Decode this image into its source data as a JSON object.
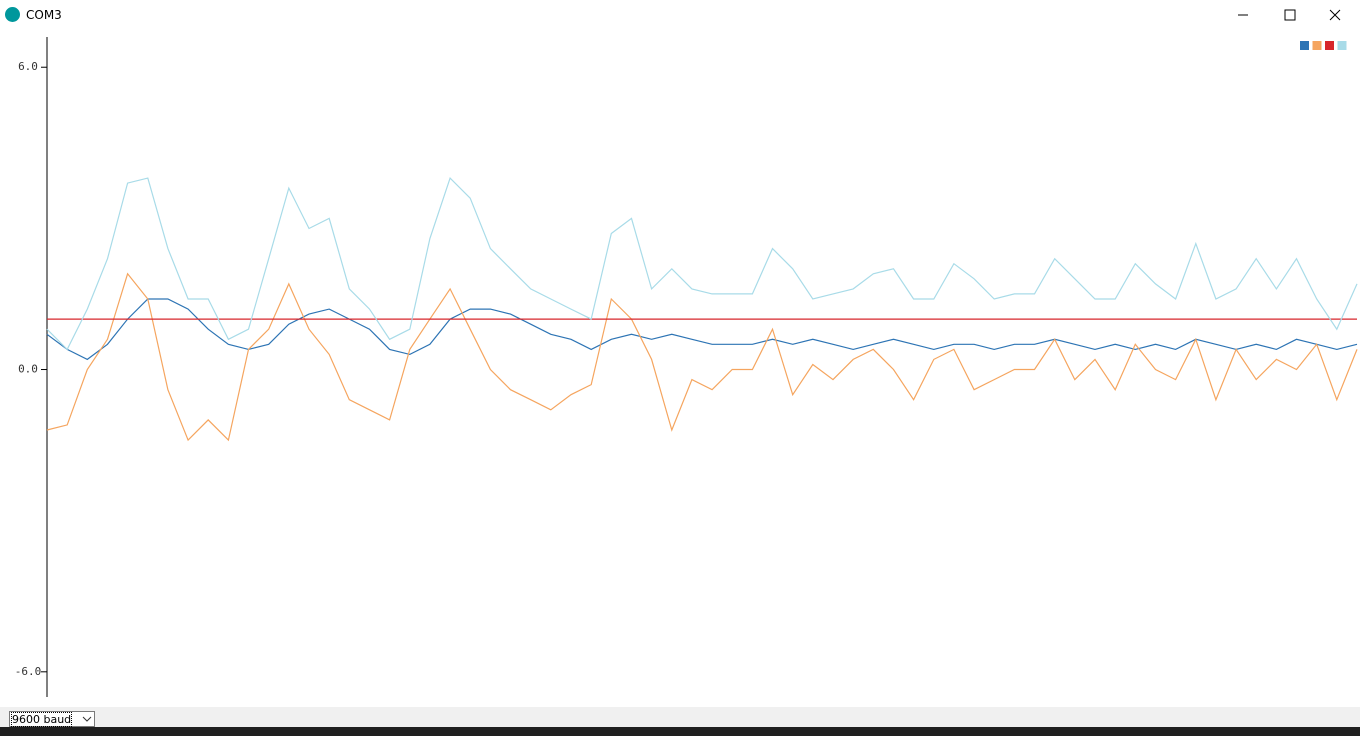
{
  "window": {
    "title": "COM3",
    "baud": "9600 baud"
  },
  "chart_data": {
    "type": "line",
    "ylim": [
      -6.5,
      6.6
    ],
    "yticks": [
      {
        "value": 6,
        "label": "6.0"
      },
      {
        "value": 0,
        "label": "0.0"
      },
      {
        "value": -6,
        "label": "-6.0"
      }
    ],
    "legend": "top-right",
    "series": [
      {
        "color": "#2d74b4",
        "values": [
          0.7,
          0.4,
          0.2,
          0.5,
          1.0,
          1.4,
          1.4,
          1.2,
          0.8,
          0.5,
          0.4,
          0.5,
          0.9,
          1.1,
          1.2,
          1.0,
          0.8,
          0.4,
          0.3,
          0.5,
          1.0,
          1.2,
          1.2,
          1.1,
          0.9,
          0.7,
          0.6,
          0.4,
          0.6,
          0.7,
          0.6,
          0.7,
          0.6,
          0.5,
          0.5,
          0.5,
          0.6,
          0.5,
          0.6,
          0.5,
          0.4,
          0.5,
          0.6,
          0.5,
          0.4,
          0.5,
          0.5,
          0.4,
          0.5,
          0.5,
          0.6,
          0.5,
          0.4,
          0.5,
          0.4,
          0.5,
          0.4,
          0.6,
          0.5,
          0.4,
          0.5,
          0.4,
          0.6,
          0.5,
          0.4,
          0.5
        ]
      },
      {
        "color": "#f5a55f",
        "values": [
          -1.2,
          -1.1,
          0.0,
          0.6,
          1.9,
          1.4,
          -0.4,
          -1.4,
          -1.0,
          -1.4,
          0.4,
          0.8,
          1.7,
          0.8,
          0.3,
          -0.6,
          -0.8,
          -1.0,
          0.4,
          1.0,
          1.6,
          0.8,
          0.0,
          -0.4,
          -0.6,
          -0.8,
          -0.5,
          -0.3,
          1.4,
          1.0,
          0.2,
          -1.2,
          -0.2,
          -0.4,
          0.0,
          0.0,
          0.8,
          -0.5,
          0.1,
          -0.2,
          0.2,
          0.4,
          0.0,
          -0.6,
          0.2,
          0.4,
          -0.4,
          -0.2,
          0.0,
          0.0,
          0.6,
          -0.2,
          0.2,
          -0.4,
          0.5,
          0.0,
          -0.2,
          0.6,
          -0.6,
          0.4,
          -0.2,
          0.2,
          0.0,
          0.5,
          -0.6,
          0.4
        ]
      },
      {
        "color": "#d7262b",
        "values": [
          1.0,
          1.0,
          1.0,
          1.0,
          1.0,
          1.0,
          1.0,
          1.0,
          1.0,
          1.0,
          1.0,
          1.0,
          1.0,
          1.0,
          1.0,
          1.0,
          1.0,
          1.0,
          1.0,
          1.0,
          1.0,
          1.0,
          1.0,
          1.0,
          1.0,
          1.0,
          1.0,
          1.0,
          1.0,
          1.0,
          1.0,
          1.0,
          1.0,
          1.0,
          1.0,
          1.0,
          1.0,
          1.0,
          1.0,
          1.0,
          1.0,
          1.0,
          1.0,
          1.0,
          1.0,
          1.0,
          1.0,
          1.0,
          1.0,
          1.0,
          1.0,
          1.0,
          1.0,
          1.0,
          1.0,
          1.0,
          1.0,
          1.0,
          1.0,
          1.0,
          1.0,
          1.0,
          1.0,
          1.0,
          1.0,
          1.0
        ]
      },
      {
        "color": "#a8dbe8",
        "values": [
          0.8,
          0.4,
          1.2,
          2.2,
          3.7,
          3.8,
          2.4,
          1.4,
          1.4,
          0.6,
          0.8,
          2.2,
          3.6,
          2.8,
          3.0,
          1.6,
          1.2,
          0.6,
          0.8,
          2.6,
          3.8,
          3.4,
          2.4,
          2.0,
          1.6,
          1.4,
          1.2,
          1.0,
          2.7,
          3.0,
          1.6,
          2.0,
          1.6,
          1.5,
          1.5,
          1.5,
          2.4,
          2.0,
          1.4,
          1.5,
          1.6,
          1.9,
          2.0,
          1.4,
          1.4,
          2.1,
          1.8,
          1.4,
          1.5,
          1.5,
          2.2,
          1.8,
          1.4,
          1.4,
          2.1,
          1.7,
          1.4,
          2.5,
          1.4,
          1.6,
          2.2,
          1.6,
          2.2,
          1.4,
          0.8,
          1.7
        ]
      }
    ]
  }
}
